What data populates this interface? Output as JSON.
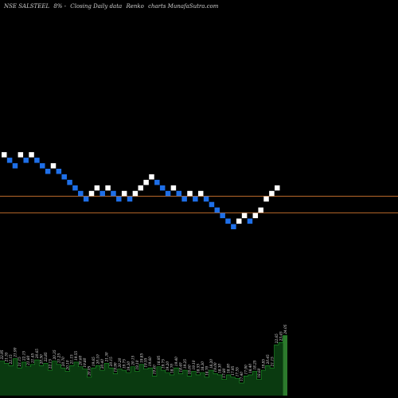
{
  "header": {
    "symbol": "NSE SALSTEEL",
    "change": "8% -",
    "caption": "Closing Daily data",
    "chart_kind": "Renko",
    "site": "charts MunafaSutra.com"
  },
  "colors": {
    "background": "#000000",
    "brick_up": "#ffffff",
    "brick_down": "#1e6fe8",
    "level_line": "#b8682a",
    "volume_fill": "#0a3a10",
    "volume_last": "#2c7a2c",
    "volume_edge": "#1f9c2a"
  },
  "chart_data": [
    {
      "type": "renko",
      "title": "",
      "bricks": [
        {
          "dir": "up",
          "y": 8
        },
        {
          "dir": "down",
          "y": 7
        },
        {
          "dir": "down",
          "y": 6
        },
        {
          "dir": "up",
          "y": 8
        },
        {
          "dir": "down",
          "y": 7
        },
        {
          "dir": "up",
          "y": 8
        },
        {
          "dir": "down",
          "y": 7
        },
        {
          "dir": "down",
          "y": 6
        },
        {
          "dir": "down",
          "y": 5
        },
        {
          "dir": "up",
          "y": 6
        },
        {
          "dir": "down",
          "y": 5
        },
        {
          "dir": "down",
          "y": 4
        },
        {
          "dir": "down",
          "y": 3
        },
        {
          "dir": "down",
          "y": 2
        },
        {
          "dir": "down",
          "y": 1
        },
        {
          "dir": "down",
          "y": 0
        },
        {
          "dir": "up",
          "y": 1
        },
        {
          "dir": "up",
          "y": 2
        },
        {
          "dir": "down",
          "y": 1
        },
        {
          "dir": "up",
          "y": 2
        },
        {
          "dir": "down",
          "y": 1
        },
        {
          "dir": "down",
          "y": 0
        },
        {
          "dir": "up",
          "y": 1
        },
        {
          "dir": "down",
          "y": 0
        },
        {
          "dir": "up",
          "y": 1
        },
        {
          "dir": "up",
          "y": 2
        },
        {
          "dir": "up",
          "y": 3
        },
        {
          "dir": "up",
          "y": 4
        },
        {
          "dir": "down",
          "y": 3
        },
        {
          "dir": "down",
          "y": 2
        },
        {
          "dir": "down",
          "y": 1
        },
        {
          "dir": "up",
          "y": 2
        },
        {
          "dir": "down",
          "y": 1
        },
        {
          "dir": "down",
          "y": 0
        },
        {
          "dir": "up",
          "y": 1
        },
        {
          "dir": "down",
          "y": 0
        },
        {
          "dir": "up",
          "y": 1
        },
        {
          "dir": "down",
          "y": 0
        },
        {
          "dir": "down",
          "y": -1
        },
        {
          "dir": "down",
          "y": -2
        },
        {
          "dir": "down",
          "y": -3
        },
        {
          "dir": "down",
          "y": -4
        },
        {
          "dir": "down",
          "y": -5
        },
        {
          "dir": "up",
          "y": -4
        },
        {
          "dir": "up",
          "y": -3
        },
        {
          "dir": "down",
          "y": -4
        },
        {
          "dir": "up",
          "y": -3
        },
        {
          "dir": "up",
          "y": -2
        },
        {
          "dir": "up",
          "y": 0
        },
        {
          "dir": "up",
          "y": 1
        },
        {
          "dir": "up",
          "y": 2
        }
      ],
      "levels": [
        0.5,
        -2.5
      ]
    },
    {
      "type": "bar",
      "title": "",
      "xlabel": "",
      "ylabel": "",
      "values": [
        30,
        28,
        26,
        32,
        24,
        29,
        25,
        27,
        31,
        26,
        28,
        22,
        30,
        27,
        24,
        21,
        26,
        29,
        25,
        23,
        16,
        24,
        26,
        22,
        28,
        24,
        19,
        23,
        22,
        20,
        25,
        21,
        27,
        23,
        24,
        17,
        25,
        22,
        20,
        18,
        24,
        19,
        22,
        17,
        21,
        18,
        20,
        16,
        22,
        19,
        18,
        14,
        18,
        16,
        15,
        11,
        17,
        18,
        21,
        14,
        22,
        26,
        24,
        44,
        46,
        52
      ],
      "labels": [
        "22.95",
        "21.55",
        "22.15",
        "21.90",
        "21.15",
        "22.15",
        "21.80",
        "21.45",
        "20.65",
        "20.50",
        "22.85",
        "22.15",
        "20.35",
        "21.25",
        "20.70",
        "20.10",
        "21.15",
        "19.55",
        "20.60",
        "19.80",
        "20.05",
        "19.65",
        "20.10",
        "20.40",
        "21.30",
        "20.15",
        "19.90",
        "20.20",
        "19.75",
        "19.30",
        "20.15",
        "19.10",
        "19.85",
        "19.55",
        "19.60",
        "19.40",
        "18.95",
        "19.75",
        "19.20",
        "18.70",
        "19.40",
        "18.40",
        "19.25",
        "18.60",
        "19.10",
        "18.55",
        "18.30",
        "18.70",
        "18.20",
        "19.00",
        "18.30",
        "17.80",
        "18.00",
        "17.95",
        "17.55",
        "17.40",
        "17.90",
        "18.40",
        "18.25",
        "18.60",
        "19.85",
        "20.45",
        "21.15",
        "22.65",
        "23.45",
        "24.05"
      ]
    }
  ]
}
